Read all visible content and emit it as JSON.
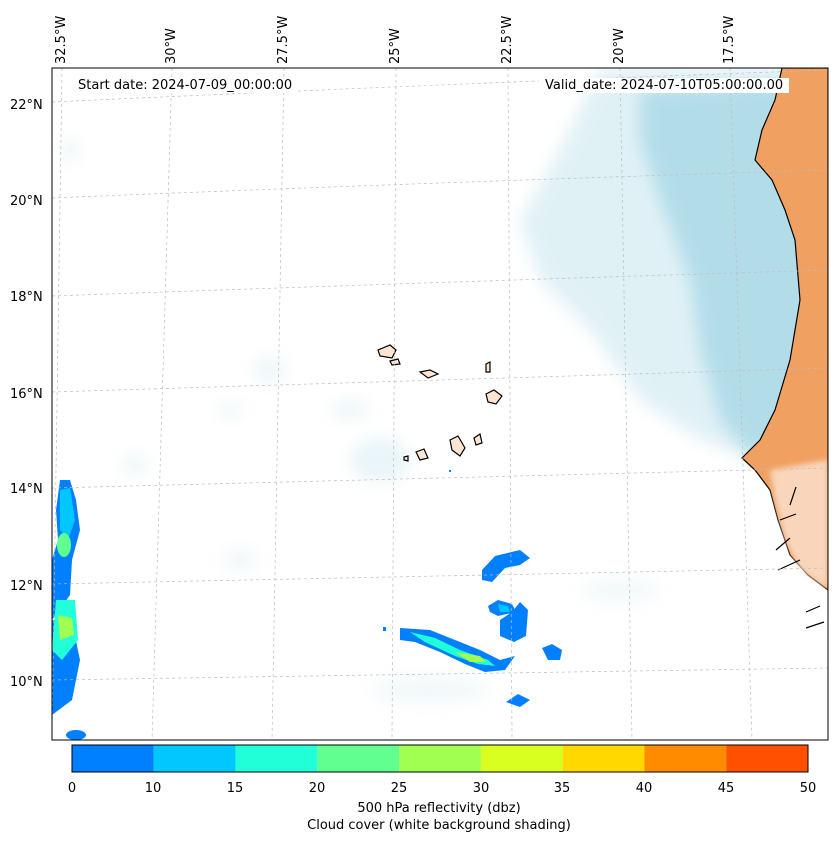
{
  "header": {
    "start_date": "Start date: 2024-07-09_00:00:00",
    "valid_date": "Valid_date: 2024-07-10T05:00:00.00"
  },
  "axes": {
    "lon_labels": [
      "32.5°W",
      "30°W",
      "27.5°W",
      "25°W",
      "22.5°W",
      "20°W",
      "17.5°W"
    ],
    "lat_labels": [
      "22°N",
      "20°N",
      "18°N",
      "16°N",
      "14°N",
      "12°N",
      "10°N"
    ]
  },
  "colorbar": {
    "ticks": [
      "0",
      "10",
      "15",
      "20",
      "25",
      "30",
      "35",
      "40",
      "45",
      "50"
    ],
    "colors": [
      "#0080ff",
      "#00c8ff",
      "#20ffd8",
      "#60ff90",
      "#a0ff50",
      "#d8ff20",
      "#ffd800",
      "#ff8c00",
      "#ff5000"
    ],
    "label_line1": "500 hPa reflectivity (dbz)",
    "label_line2": "Cloud cover (white background shading)"
  },
  "colors": {
    "cloud": "#a8d8e6",
    "land_dust": "#f0a060",
    "coast": "#000000"
  }
}
